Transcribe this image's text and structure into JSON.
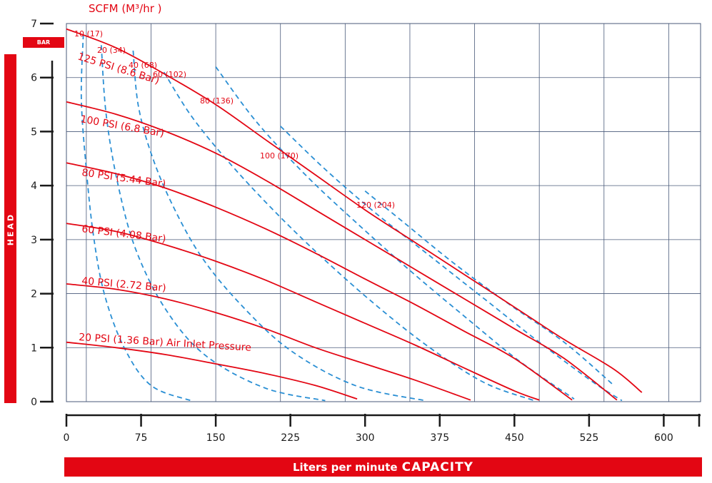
{
  "chart_data": {
    "type": "line",
    "title": "SCFM (M³/hr )",
    "xlabel_prefix": "Liters per minute",
    "xlabel_emphasis": "CAPACITY",
    "ylabel": "HEAD",
    "yunit": "BAR",
    "xlim": [
      0,
      637
    ],
    "ylim": [
      0,
      7
    ],
    "xticks": [
      0,
      75,
      150,
      225,
      300,
      375,
      450,
      525,
      600
    ],
    "yticks": [
      0,
      1,
      2,
      3,
      4,
      5,
      6,
      7
    ],
    "grid": true,
    "pressure_curves": [
      {
        "label": "125 PSI (8.6 Bar)",
        "points": [
          [
            0,
            6.9
          ],
          [
            50,
            6.55
          ],
          [
            100,
            6.05
          ],
          [
            150,
            5.5
          ],
          [
            200,
            4.85
          ],
          [
            250,
            4.2
          ],
          [
            300,
            3.55
          ],
          [
            350,
            2.95
          ],
          [
            400,
            2.35
          ],
          [
            450,
            1.75
          ],
          [
            500,
            1.15
          ],
          [
            550,
            0.6
          ],
          [
            578,
            0.17
          ]
        ]
      },
      {
        "label": "100 PSI (6.8 Bar)",
        "points": [
          [
            0,
            5.55
          ],
          [
            50,
            5.32
          ],
          [
            100,
            5.0
          ],
          [
            150,
            4.6
          ],
          [
            200,
            4.1
          ],
          [
            250,
            3.55
          ],
          [
            300,
            3.0
          ],
          [
            350,
            2.45
          ],
          [
            400,
            1.9
          ],
          [
            450,
            1.35
          ],
          [
            500,
            0.8
          ],
          [
            553,
            0.03
          ]
        ]
      },
      {
        "label": "80 PSI (5.44 Bar)",
        "points": [
          [
            0,
            4.42
          ],
          [
            50,
            4.22
          ],
          [
            100,
            3.95
          ],
          [
            150,
            3.6
          ],
          [
            200,
            3.2
          ],
          [
            250,
            2.75
          ],
          [
            300,
            2.27
          ],
          [
            350,
            1.8
          ],
          [
            400,
            1.3
          ],
          [
            450,
            0.8
          ],
          [
            508,
            0.03
          ]
        ]
      },
      {
        "label": "60 PSI (4.08 Bar)",
        "points": [
          [
            0,
            3.3
          ],
          [
            50,
            3.15
          ],
          [
            100,
            2.9
          ],
          [
            150,
            2.6
          ],
          [
            200,
            2.25
          ],
          [
            250,
            1.85
          ],
          [
            300,
            1.45
          ],
          [
            350,
            1.05
          ],
          [
            400,
            0.62
          ],
          [
            450,
            0.2
          ],
          [
            475,
            0.03
          ]
        ]
      },
      {
        "label": "40 PSI (2.72 Bar)",
        "points": [
          [
            0,
            2.18
          ],
          [
            50,
            2.08
          ],
          [
            100,
            1.9
          ],
          [
            150,
            1.65
          ],
          [
            200,
            1.35
          ],
          [
            250,
            1.0
          ],
          [
            300,
            0.7
          ],
          [
            350,
            0.4
          ],
          [
            406,
            0.03
          ]
        ]
      },
      {
        "label": "20 PSI (1.36 Bar) Air Inlet Pressure",
        "points": [
          [
            0,
            1.1
          ],
          [
            50,
            1.0
          ],
          [
            100,
            0.87
          ],
          [
            150,
            0.7
          ],
          [
            200,
            0.52
          ],
          [
            250,
            0.3
          ],
          [
            292,
            0.05
          ]
        ]
      }
    ],
    "air_consumption_curves": [
      {
        "label": "10 (17)",
        "points": [
          [
            17,
            6.8
          ],
          [
            15,
            5.6
          ],
          [
            20,
            4.3
          ],
          [
            27,
            3.1
          ],
          [
            38,
            2.0
          ],
          [
            58,
            1.0
          ],
          [
            85,
            0.3
          ],
          [
            125,
            0.02
          ]
        ]
      },
      {
        "label": "20 (34)",
        "points": [
          [
            35,
            6.6
          ],
          [
            40,
            5.3
          ],
          [
            52,
            4.0
          ],
          [
            70,
            2.8
          ],
          [
            100,
            1.7
          ],
          [
            140,
            0.85
          ],
          [
            200,
            0.25
          ],
          [
            260,
            0.02
          ]
        ]
      },
      {
        "label": "40 (68)",
        "points": [
          [
            67,
            6.5
          ],
          [
            72,
            5.5
          ],
          [
            85,
            4.6
          ],
          [
            105,
            3.7
          ],
          [
            135,
            2.7
          ],
          [
            175,
            1.8
          ],
          [
            225,
            0.95
          ],
          [
            290,
            0.3
          ],
          [
            360,
            0.02
          ]
        ]
      },
      {
        "label": "60 (102)",
        "points": [
          [
            98,
            6.1
          ],
          [
            125,
            5.3
          ],
          [
            160,
            4.5
          ],
          [
            205,
            3.6
          ],
          [
            255,
            2.7
          ],
          [
            310,
            1.8
          ],
          [
            365,
            1.0
          ],
          [
            420,
            0.35
          ],
          [
            470,
            0.02
          ]
        ]
      },
      {
        "label": "80 (136)",
        "points": [
          [
            150,
            6.2
          ],
          [
            190,
            5.2
          ],
          [
            240,
            4.2
          ],
          [
            295,
            3.25
          ],
          [
            350,
            2.35
          ],
          [
            405,
            1.5
          ],
          [
            455,
            0.75
          ],
          [
            510,
            0.05
          ]
        ]
      },
      {
        "label": "100 (170)",
        "points": [
          [
            215,
            5.1
          ],
          [
            260,
            4.3
          ],
          [
            310,
            3.5
          ],
          [
            365,
            2.7
          ],
          [
            420,
            1.9
          ],
          [
            475,
            1.1
          ],
          [
            530,
            0.35
          ],
          [
            558,
            0.02
          ]
        ]
      },
      {
        "label": "120 (204)",
        "points": [
          [
            300,
            3.9
          ],
          [
            340,
            3.3
          ],
          [
            390,
            2.55
          ],
          [
            445,
            1.8
          ],
          [
            500,
            1.1
          ],
          [
            550,
            0.3
          ]
        ]
      }
    ]
  },
  "colors": {
    "pressure_line": "#e30613",
    "air_line": "#2a8fd4",
    "grid": "#4a5a7a",
    "axis": "#1a1a1a",
    "label_red": "#e30613"
  }
}
